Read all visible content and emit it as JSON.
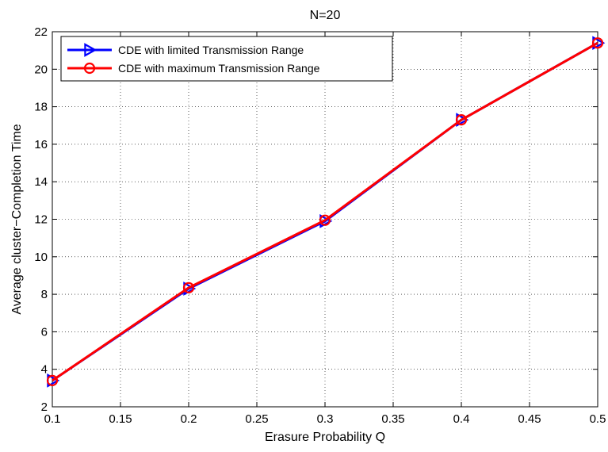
{
  "chart_data": {
    "type": "line",
    "title": "N=20",
    "xlabel": "Erasure Probability Q",
    "ylabel": "Average cluster−Completion Time",
    "xlim": [
      0.1,
      0.5
    ],
    "ylim": [
      2,
      22
    ],
    "xticks": [
      0.1,
      0.15,
      0.2,
      0.25,
      0.3,
      0.35,
      0.4,
      0.45,
      0.5
    ],
    "xtick_labels": [
      "0.1",
      "0.15",
      "0.2",
      "0.25",
      "0.3",
      "0.35",
      "0.4",
      "0.45",
      "0.5"
    ],
    "yticks": [
      2,
      4,
      6,
      8,
      10,
      12,
      14,
      16,
      18,
      20,
      22
    ],
    "ytick_labels": [
      "2",
      "4",
      "6",
      "8",
      "10",
      "12",
      "14",
      "16",
      "18",
      "20",
      "22"
    ],
    "grid": true,
    "legend_position": "top-left",
    "series": [
      {
        "name": "CDE with limited Transmission Range",
        "color": "#0000ff",
        "marker": "triangle-right",
        "x": [
          0.1,
          0.2,
          0.3,
          0.4,
          0.5
        ],
        "y": [
          3.4,
          8.3,
          11.9,
          17.3,
          21.4
        ]
      },
      {
        "name": "CDE with maximum Transmission Range",
        "color": "#ff0000",
        "marker": "circle",
        "x": [
          0.1,
          0.2,
          0.3,
          0.4,
          0.5
        ],
        "y": [
          3.4,
          8.35,
          11.95,
          17.3,
          21.4
        ]
      }
    ]
  }
}
